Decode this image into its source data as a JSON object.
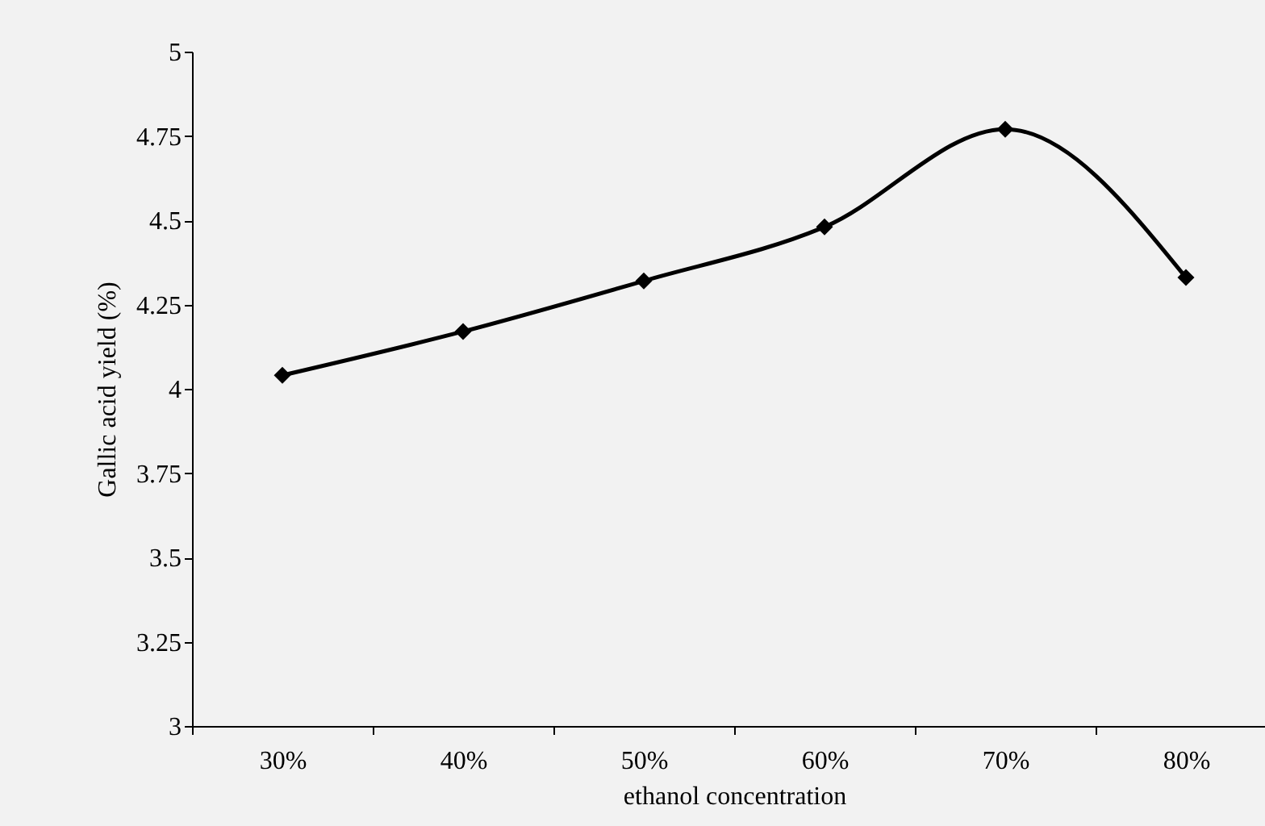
{
  "chart_data": {
    "type": "line",
    "xlabel": "ethanol concentration",
    "ylabel": "Gallic acid yield (%)",
    "categories": [
      "30%",
      "40%",
      "50%",
      "60%",
      "70%",
      "80%"
    ],
    "values": [
      4.04,
      4.17,
      4.32,
      4.48,
      4.77,
      4.33
    ],
    "color": "#000000",
    "marker": "diamond",
    "line_style": "solid",
    "ylim": [
      3,
      5
    ],
    "yticks": [
      3,
      3.25,
      3.5,
      3.75,
      4,
      4.25,
      4.5,
      4.75,
      5
    ]
  }
}
